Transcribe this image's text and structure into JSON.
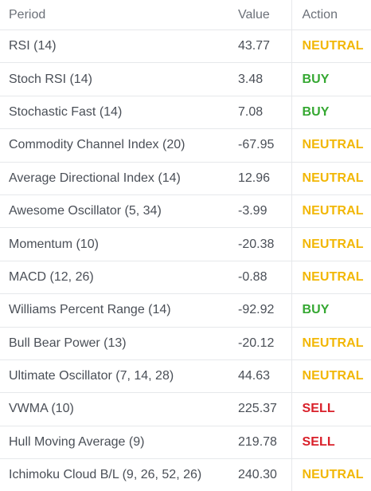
{
  "table": {
    "headers": {
      "period": "Period",
      "value": "Value",
      "action": "Action"
    },
    "rows": [
      {
        "period": "RSI (14)",
        "value": "43.77",
        "action": "NEUTRAL"
      },
      {
        "period": "Stoch RSI (14)",
        "value": "3.48",
        "action": "BUY"
      },
      {
        "period": "Stochastic Fast (14)",
        "value": "7.08",
        "action": "BUY"
      },
      {
        "period": "Commodity Channel Index (20)",
        "value": "-67.95",
        "action": "NEUTRAL"
      },
      {
        "period": "Average Directional Index (14)",
        "value": "12.96",
        "action": "NEUTRAL"
      },
      {
        "period": "Awesome Oscillator (5, 34)",
        "value": "-3.99",
        "action": "NEUTRAL"
      },
      {
        "period": "Momentum (10)",
        "value": "-20.38",
        "action": "NEUTRAL"
      },
      {
        "period": "MACD (12, 26)",
        "value": "-0.88",
        "action": "NEUTRAL"
      },
      {
        "period": "Williams Percent Range (14)",
        "value": "-92.92",
        "action": "BUY"
      },
      {
        "period": "Bull Bear Power (13)",
        "value": "-20.12",
        "action": "NEUTRAL"
      },
      {
        "period": "Ultimate Oscillator (7, 14, 28)",
        "value": "44.63",
        "action": "NEUTRAL"
      },
      {
        "period": "VWMA (10)",
        "value": "225.37",
        "action": "SELL"
      },
      {
        "period": "Hull Moving Average (9)",
        "value": "219.78",
        "action": "SELL"
      },
      {
        "period": "Ichimoku Cloud B/L (9, 26, 52, 26)",
        "value": "240.30",
        "action": "NEUTRAL"
      }
    ]
  },
  "colors": {
    "neutral": "#f2b705",
    "buy": "#35a832",
    "sell": "#d9202a",
    "text": "#4a4f57",
    "border": "#e6e8eb"
  }
}
